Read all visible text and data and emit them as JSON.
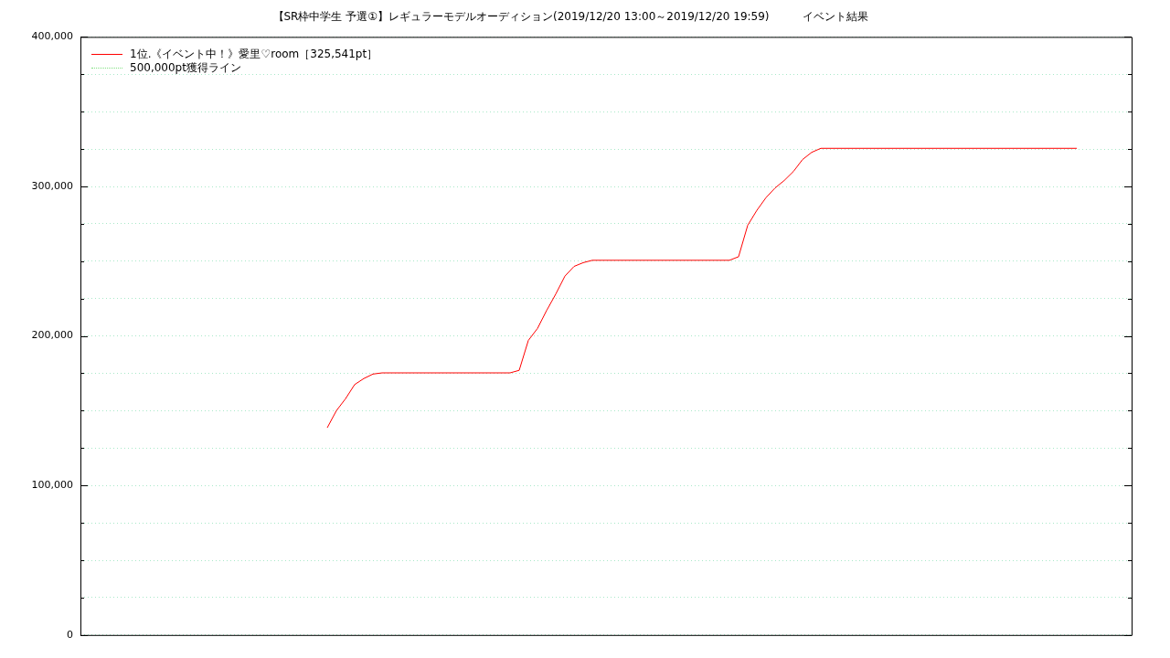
{
  "chart_data": {
    "type": "line",
    "title": "【SR枠中学生 予選①】レギュラーモデルオーディション(2019/12/20 13:00～2019/12/20 19:59)　　　イベント結果",
    "categories": [
      null,
      null,
      null,
      null,
      null,
      null,
      null,
      null,
      null,
      null,
      null,
      null,
      null,
      null,
      null,
      null,
      null,
      null,
      null,
      null,
      null,
      null,
      null,
      null,
      null,
      null,
      null,
      null,
      null,
      null,
      null,
      null,
      null,
      null,
      null,
      null,
      null,
      null,
      null,
      null,
      null,
      null,
      null,
      null,
      null,
      null,
      null,
      null,
      null,
      null,
      null,
      null,
      null,
      null,
      null,
      null,
      null,
      null,
      null,
      null,
      null,
      null,
      null,
      null,
      null,
      null,
      null,
      null,
      null,
      null,
      null,
      null,
      null,
      null,
      null,
      null,
      null,
      null,
      null,
      null,
      null,
      null,
      null,
      null,
      null,
      null,
      null,
      null,
      null,
      null,
      null,
      null,
      null,
      null,
      null,
      null,
      null,
      null,
      null,
      null,
      null,
      null,
      null,
      null,
      null,
      null,
      null,
      null,
      null,
      null,
      null,
      null,
      null,
      null,
      null,
      null
    ],
    "series": [
      {
        "name": "1位.《イベント中！》愛里♡room［325,541pt］",
        "color": "#ff0000",
        "line_style": "solid",
        "values": [
          null,
          null,
          null,
          null,
          null,
          null,
          null,
          null,
          null,
          null,
          null,
          null,
          null,
          null,
          null,
          null,
          null,
          null,
          null,
          null,
          null,
          null,
          null,
          null,
          null,
          null,
          null,
          138600,
          150000,
          158000,
          167500,
          171500,
          174500,
          175300,
          175300,
          175300,
          175300,
          175300,
          175300,
          175300,
          175300,
          175300,
          175300,
          175300,
          175300,
          175300,
          175300,
          175300,
          177000,
          197000,
          205000,
          217000,
          228000,
          240000,
          246500,
          249000,
          250600,
          250600,
          250600,
          250600,
          250600,
          250600,
          250600,
          250600,
          250600,
          250600,
          250600,
          250600,
          250600,
          250600,
          250600,
          250600,
          253000,
          274000,
          284000,
          292500,
          299000,
          304000,
          310000,
          318000,
          322800,
          325500,
          325500,
          325500,
          325500,
          325500,
          325500,
          325500,
          325500,
          325500,
          325500,
          325500,
          325500,
          325500,
          325500,
          325500,
          325500,
          325500,
          325500,
          325500,
          325500,
          325500,
          325500,
          325500,
          325500,
          325500,
          325500,
          325500,
          325500,
          325500,
          null,
          null,
          null,
          null,
          null,
          null
        ]
      },
      {
        "name": "500,000pt獲得ライン",
        "color": "#80e080",
        "line_style": "dotted",
        "values": [
          null,
          null,
          null,
          null,
          null,
          null,
          null,
          null,
          null,
          null,
          null,
          null,
          null,
          null,
          null,
          null,
          null,
          null,
          null,
          null,
          null,
          null,
          null,
          null,
          null,
          null,
          null,
          null,
          null,
          null,
          null,
          null,
          null,
          null,
          null,
          null,
          null,
          null,
          null,
          null,
          null,
          null,
          null,
          null,
          null,
          null,
          null,
          null,
          null,
          null,
          null,
          null,
          null,
          null,
          null,
          null,
          null,
          null,
          null,
          null,
          null,
          null,
          null,
          null,
          null,
          null,
          null,
          null,
          null,
          null,
          null,
          null,
          null,
          null,
          null,
          null,
          null,
          null,
          null,
          null,
          null,
          null,
          null,
          null,
          null,
          null,
          null,
          null,
          null,
          null,
          null,
          null,
          null,
          null,
          null,
          null,
          null,
          null,
          null,
          null,
          null,
          null,
          null,
          null,
          null,
          null,
          null,
          null,
          null,
          null,
          null,
          null,
          null,
          null,
          null,
          null
        ]
      }
    ],
    "ylim": [
      0,
      400000
    ],
    "yticks": [
      {
        "value": 0,
        "label": "0"
      },
      {
        "value": 25000,
        "label": null
      },
      {
        "value": 50000,
        "label": null
      },
      {
        "value": 75000,
        "label": null
      },
      {
        "value": 100000,
        "label": "100,000"
      },
      {
        "value": 125000,
        "label": null
      },
      {
        "value": 150000,
        "label": null
      },
      {
        "value": 175000,
        "label": null
      },
      {
        "value": 200000,
        "label": "200,000"
      },
      {
        "value": 225000,
        "label": null
      },
      {
        "value": 250000,
        "label": null
      },
      {
        "value": 275000,
        "label": null
      },
      {
        "value": 300000,
        "label": "300,000"
      },
      {
        "value": 325000,
        "label": null
      },
      {
        "value": 350000,
        "label": null
      },
      {
        "value": 375000,
        "label": null
      },
      {
        "value": 400000,
        "label": "400,000"
      }
    ],
    "grid": "y",
    "legend": "top left",
    "marker": "none"
  }
}
